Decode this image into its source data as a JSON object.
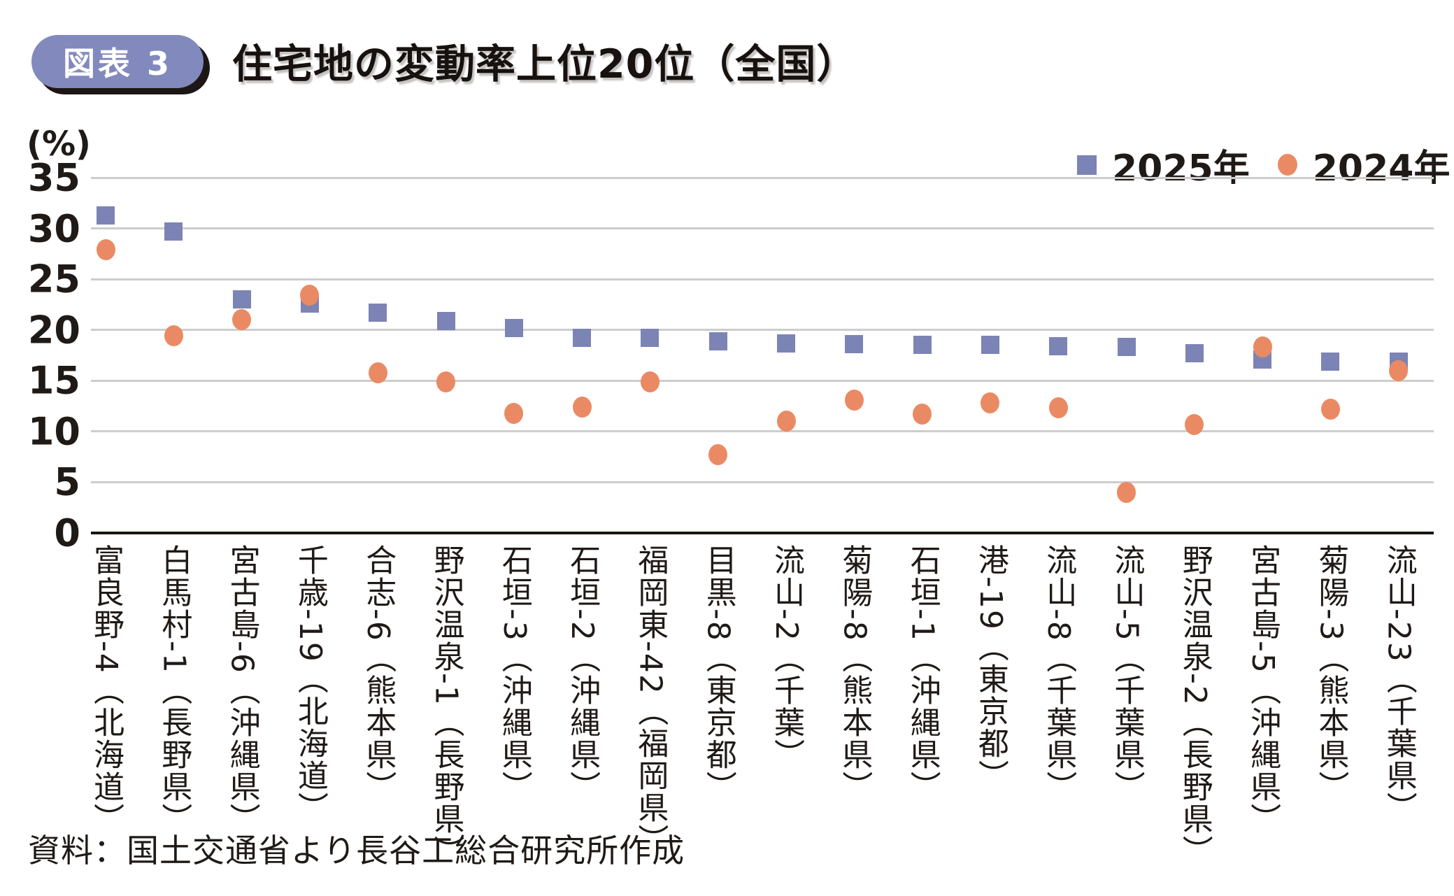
{
  "figure": {
    "badge": "図表 3",
    "title": "住宅地の変動率上位20位（全国）",
    "unit_label": "(%)",
    "source": "資料：国土交通省より長谷工総合研究所作成"
  },
  "legend": [
    {
      "label": "2025年",
      "marker": "square",
      "color": "#7C83B5"
    },
    {
      "label": "2024年",
      "marker": "circle",
      "color": "#EA8A64"
    }
  ],
  "colors": {
    "series_2025": "#7C83B5",
    "series_2024": "#EA8A64",
    "badge_bg": "#8289BD",
    "badge_text": "#FFFFFF",
    "gridline": "#CDCDCD",
    "axis": "#191412",
    "text": "#201A17"
  },
  "chart_data": {
    "type": "scatter",
    "title": "住宅地の変動率上位20位（全国）",
    "xlabel": "",
    "ylabel": "(%)",
    "ylim": [
      0,
      35
    ],
    "yticks": [
      0,
      5,
      10,
      15,
      20,
      25,
      30,
      35
    ],
    "grid": true,
    "legend_position": "top-right",
    "categories": [
      "富良野-4（北海道）",
      "白馬村-1（長野県）",
      "宮古島-6（沖縄県）",
      "千歳-19（北海道）",
      "合志-6（熊本県）",
      "野沢温泉-1（長野県）",
      "石垣-3（沖縄県）",
      "石垣-2（沖縄県）",
      "福岡東-42（福岡県）",
      "目黒-8（東京都）",
      "流山-2（千葉）",
      "菊陽-8（熊本県）",
      "石垣-1（沖縄県）",
      "港-19（東京都）",
      "流山-8（千葉県）",
      "流山-5（千葉県）",
      "野沢温泉-2（長野県）",
      "宮古島-5（沖縄県）",
      "菊陽-3（熊本県）",
      "流山-23（千葉県）"
    ],
    "series": [
      {
        "name": "2025年",
        "marker": "square",
        "color": "#7C83B5",
        "values": [
          31.3,
          29.7,
          23.0,
          22.6,
          21.7,
          20.9,
          20.2,
          19.2,
          19.2,
          18.9,
          18.7,
          18.6,
          18.5,
          18.5,
          18.4,
          18.3,
          17.7,
          17.1,
          16.9,
          16.9
        ]
      },
      {
        "name": "2024年",
        "marker": "circle",
        "color": "#EA8A64",
        "values": [
          27.9,
          19.4,
          21.0,
          23.4,
          15.8,
          14.9,
          11.8,
          12.4,
          14.9,
          7.7,
          11.0,
          13.1,
          11.7,
          12.8,
          12.3,
          4.0,
          10.7,
          18.3,
          12.2,
          16.0
        ]
      }
    ]
  }
}
